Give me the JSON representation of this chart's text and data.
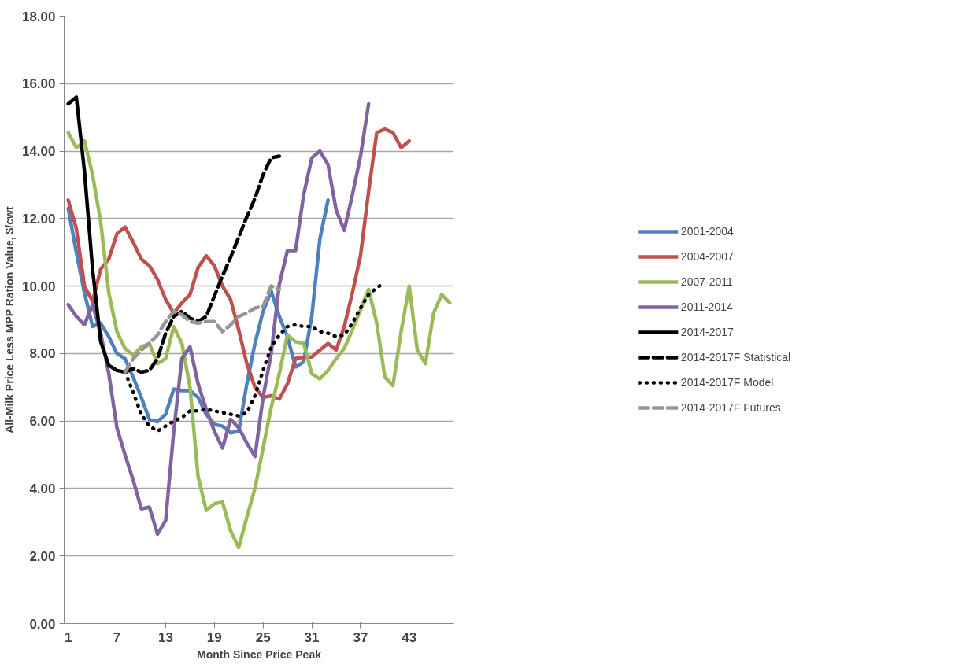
{
  "chart_data": {
    "type": "line",
    "xlabel": "Month Since Price Peak",
    "ylabel": "All-Milk Price Less MPP Ration Value, $/cwt",
    "x": [
      1,
      2,
      3,
      4,
      5,
      6,
      7,
      8,
      9,
      10,
      11,
      12,
      13,
      14,
      15,
      16,
      17,
      18,
      19,
      20,
      21,
      22,
      23,
      24,
      25,
      26,
      27,
      28,
      29,
      30,
      31,
      32,
      33,
      34,
      35,
      36,
      37,
      38,
      39,
      40,
      41,
      42,
      43,
      44,
      45,
      46,
      47,
      48
    ],
    "xlim": [
      0.5,
      48.5
    ],
    "xticks": [
      1,
      7,
      13,
      19,
      25,
      31,
      37,
      43
    ],
    "ylim": [
      0,
      18
    ],
    "yticks": [
      {
        "value": 0,
        "label": "0.00"
      },
      {
        "value": 2,
        "label": "2.00"
      },
      {
        "value": 4,
        "label": "4.00"
      },
      {
        "value": 6,
        "label": "6.00"
      },
      {
        "value": 8,
        "label": "8.00"
      },
      {
        "value": 10,
        "label": "10.00"
      },
      {
        "value": 12,
        "label": "12.00"
      },
      {
        "value": 14,
        "label": "14.00"
      },
      {
        "value": 16,
        "label": "16.00"
      },
      {
        "value": 18,
        "label": "18.00"
      }
    ],
    "grid": "y",
    "legend": "right",
    "marker": "none",
    "series": [
      {
        "name": "2001-2004",
        "color": "#4f81bd",
        "line_style": "solid",
        "values": [
          12.3,
          11.0,
          9.8,
          8.8,
          8.9,
          8.5,
          8.0,
          7.85,
          7.3,
          6.7,
          6.05,
          5.98,
          6.2,
          6.95,
          6.9,
          6.9,
          6.7,
          6.2,
          5.9,
          5.85,
          5.65,
          5.7,
          7.1,
          8.3,
          9.25,
          9.85,
          9.1,
          8.5,
          7.6,
          7.75,
          9.1,
          11.4,
          12.55,
          null,
          null,
          null,
          null,
          null,
          null,
          null,
          null,
          null,
          null,
          null,
          null,
          null,
          null,
          null
        ]
      },
      {
        "name": "2004-2007",
        "color": "#c0504d",
        "line_style": "solid",
        "values": [
          12.55,
          11.7,
          10.0,
          9.55,
          10.5,
          10.8,
          11.55,
          11.75,
          11.3,
          10.8,
          10.6,
          10.2,
          9.6,
          9.2,
          9.5,
          9.75,
          10.55,
          10.9,
          10.6,
          10.0,
          9.6,
          8.7,
          7.7,
          7.0,
          6.7,
          6.75,
          6.65,
          7.1,
          7.85,
          7.9,
          7.9,
          8.1,
          8.3,
          8.1,
          8.8,
          9.8,
          10.9,
          12.8,
          14.55,
          14.65,
          14.55,
          14.1,
          14.3,
          null,
          null,
          null,
          null,
          null
        ]
      },
      {
        "name": "2007-2011",
        "color": "#9bbb59",
        "line_style": "solid",
        "values": [
          14.55,
          14.1,
          14.3,
          13.3,
          11.9,
          9.8,
          8.65,
          8.15,
          7.95,
          8.2,
          8.3,
          7.7,
          7.85,
          8.8,
          8.3,
          7.0,
          4.35,
          3.35,
          3.55,
          3.6,
          2.75,
          2.25,
          3.15,
          4.0,
          5.2,
          6.4,
          7.4,
          8.55,
          8.35,
          8.3,
          7.4,
          7.25,
          7.5,
          7.85,
          8.15,
          8.7,
          9.3,
          9.9,
          8.9,
          7.3,
          7.05,
          8.65,
          10.0,
          8.1,
          7.7,
          9.2,
          9.75,
          9.5
        ]
      },
      {
        "name": "2011-2014",
        "color": "#8064a2",
        "line_style": "solid",
        "values": [
          9.45,
          9.1,
          8.85,
          9.45,
          8.6,
          7.4,
          5.8,
          5.0,
          4.25,
          3.4,
          3.45,
          2.65,
          3.05,
          5.7,
          7.85,
          8.2,
          7.1,
          6.35,
          5.7,
          5.2,
          6.05,
          5.8,
          5.35,
          4.95,
          6.7,
          8.0,
          10.05,
          11.05,
          11.05,
          12.7,
          13.8,
          14.0,
          13.6,
          12.25,
          11.65,
          12.7,
          13.85,
          15.4,
          null,
          null,
          null,
          null,
          null,
          null,
          null,
          null,
          null,
          null
        ]
      },
      {
        "name": "2014-2017",
        "color": "#000000",
        "line_style": "solid",
        "values": [
          15.4,
          15.6,
          13.4,
          10.5,
          8.35,
          7.65,
          7.5,
          7.45,
          null,
          null,
          null,
          null,
          null,
          null,
          null,
          null,
          null,
          null,
          null,
          null,
          null,
          null,
          null,
          null,
          null,
          null,
          null,
          null,
          null,
          null,
          null,
          null,
          null,
          null,
          null,
          null,
          null,
          null,
          null,
          null,
          null,
          null,
          null,
          null,
          null,
          null,
          null,
          null
        ]
      },
      {
        "name": "2014-2017F Statistical",
        "color": "#000000",
        "line_style": "dashed",
        "values": [
          null,
          null,
          null,
          null,
          null,
          null,
          null,
          7.45,
          7.55,
          7.45,
          7.5,
          7.85,
          8.6,
          9.1,
          9.25,
          9.05,
          8.95,
          9.1,
          9.7,
          10.3,
          10.85,
          11.45,
          12.05,
          12.6,
          13.3,
          13.8,
          13.85,
          null,
          null,
          null,
          null,
          null,
          null,
          null,
          null,
          null,
          null,
          null,
          null,
          null,
          null,
          null,
          null,
          null,
          null,
          null,
          null,
          null
        ]
      },
      {
        "name": "2014-2017F Model",
        "color": "#000000",
        "line_style": "dotted",
        "values": [
          null,
          null,
          null,
          null,
          null,
          null,
          null,
          7.45,
          6.85,
          6.2,
          5.85,
          5.7,
          5.85,
          6.0,
          6.1,
          6.3,
          6.3,
          6.35,
          6.3,
          6.25,
          6.2,
          6.15,
          6.25,
          6.75,
          7.5,
          8.2,
          8.55,
          8.8,
          8.85,
          8.8,
          8.8,
          8.65,
          8.6,
          8.5,
          8.55,
          8.9,
          9.35,
          9.75,
          9.95,
          10.1,
          null,
          null,
          null,
          null,
          null,
          null,
          null,
          null
        ]
      },
      {
        "name": "2014-2017F Futures",
        "color": "#969696",
        "line_style": "dashed",
        "values": [
          null,
          null,
          null,
          null,
          null,
          null,
          null,
          7.45,
          7.85,
          8.1,
          8.3,
          8.55,
          8.95,
          9.25,
          9.15,
          8.95,
          8.9,
          8.95,
          8.95,
          8.65,
          8.85,
          9.1,
          9.2,
          9.35,
          9.4,
          10.0,
          9.9,
          null,
          null,
          null,
          null,
          null,
          null,
          null,
          null,
          null,
          null,
          null,
          null,
          null,
          null,
          null,
          null,
          null,
          null,
          null,
          null,
          null
        ]
      }
    ]
  }
}
